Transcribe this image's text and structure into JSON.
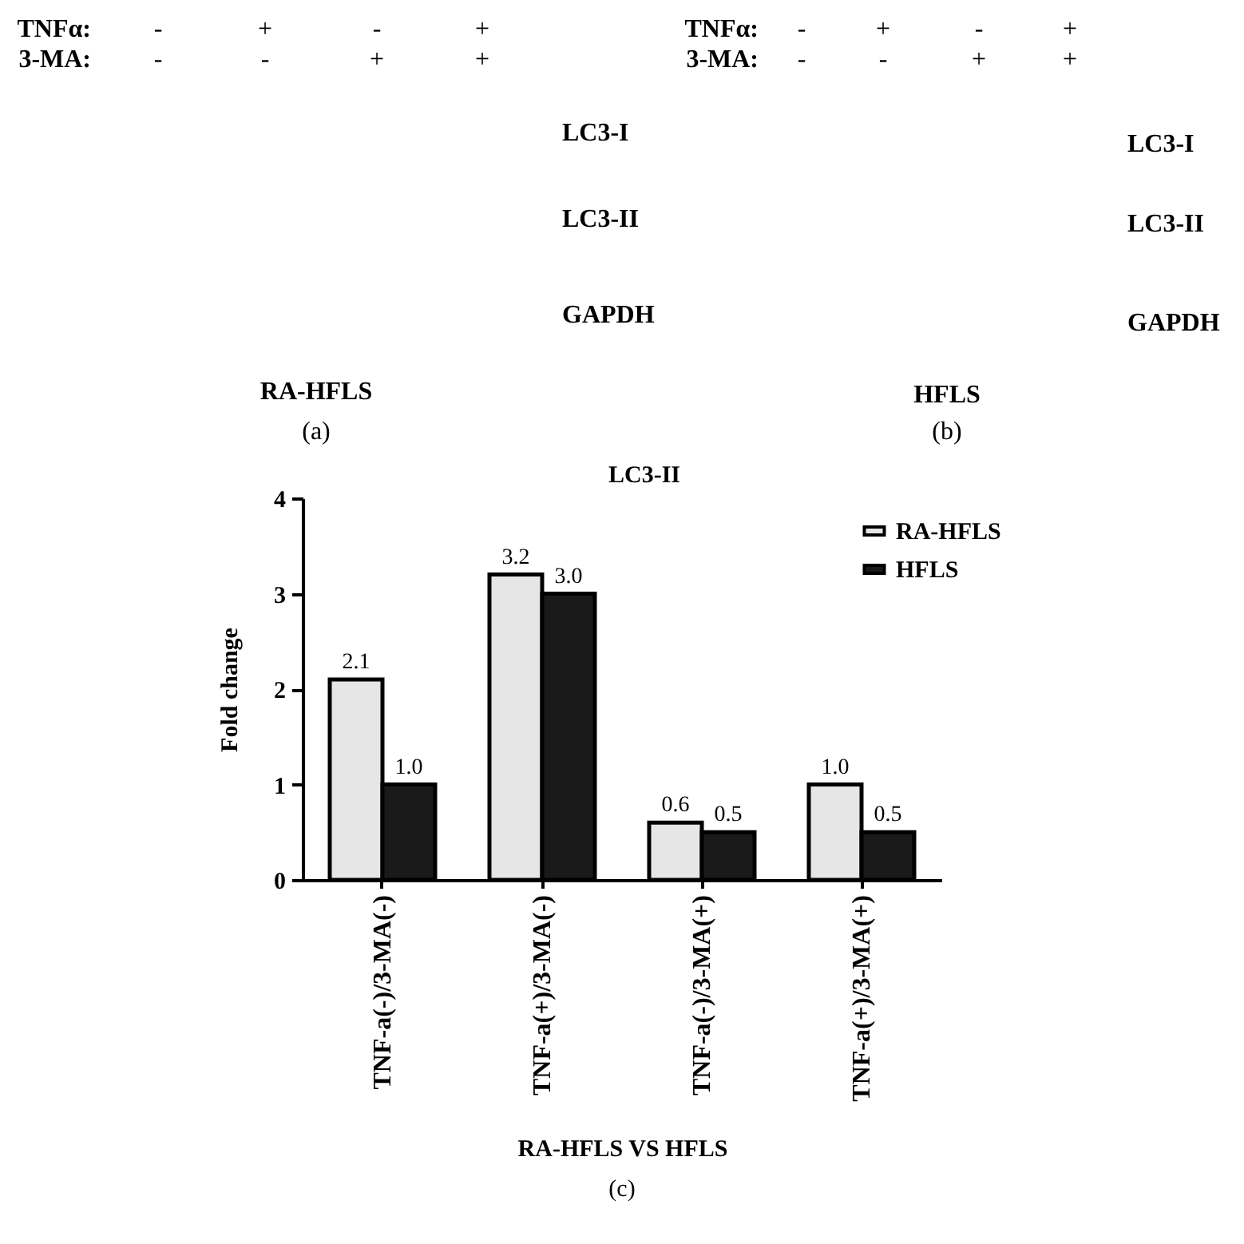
{
  "chart_data": [
    {
      "type": "other",
      "xlabel": "RA-HFLS",
      "annotations": [
        "TNFα:",
        "3-MA:",
        "-",
        "+",
        "-",
        "+",
        "-",
        "-",
        "+",
        "+",
        "LC3-I",
        "LC3-II",
        "GAPDH",
        "(a)"
      ]
    },
    {
      "type": "other",
      "xlabel": "HFLS",
      "annotations": [
        "TNFα:",
        "3-MA:",
        "-",
        "+",
        "-",
        "+",
        "-",
        "-",
        "+",
        "+",
        "LC3-I",
        "LC3-II",
        "GAPDH",
        "(b)"
      ]
    },
    {
      "type": "bar",
      "title": "LC3-II",
      "categories": [
        "TNF-a(-)/3-MA(-)",
        "TNF-a(+)/3-MA(-)",
        "TNF-a(-)/3-MA(+)",
        "TNF-a(+)/3-MA(+)"
      ],
      "series": [
        {
          "name": "RA-HFLS",
          "color": "#e6e6e6",
          "values": [
            2.1,
            3.2,
            0.6,
            1.0
          ],
          "value_labels": [
            "2.1",
            "3.2",
            "0.6",
            "1.0"
          ]
        },
        {
          "name": "HFLS",
          "color": "#1a1a1a",
          "values": [
            1.0,
            3.0,
            0.5,
            0.5
          ],
          "value_labels": [
            "1.0",
            "3.0",
            "0.5",
            "0.5"
          ]
        }
      ],
      "ylabel": "Fold change",
      "xlabel": "RA-HFLS VS HFLS",
      "ylim": [
        0,
        4
      ],
      "yticks": [
        0,
        1,
        2,
        3,
        4
      ],
      "legend": "top right",
      "annotations": [
        "(c)"
      ]
    }
  ]
}
